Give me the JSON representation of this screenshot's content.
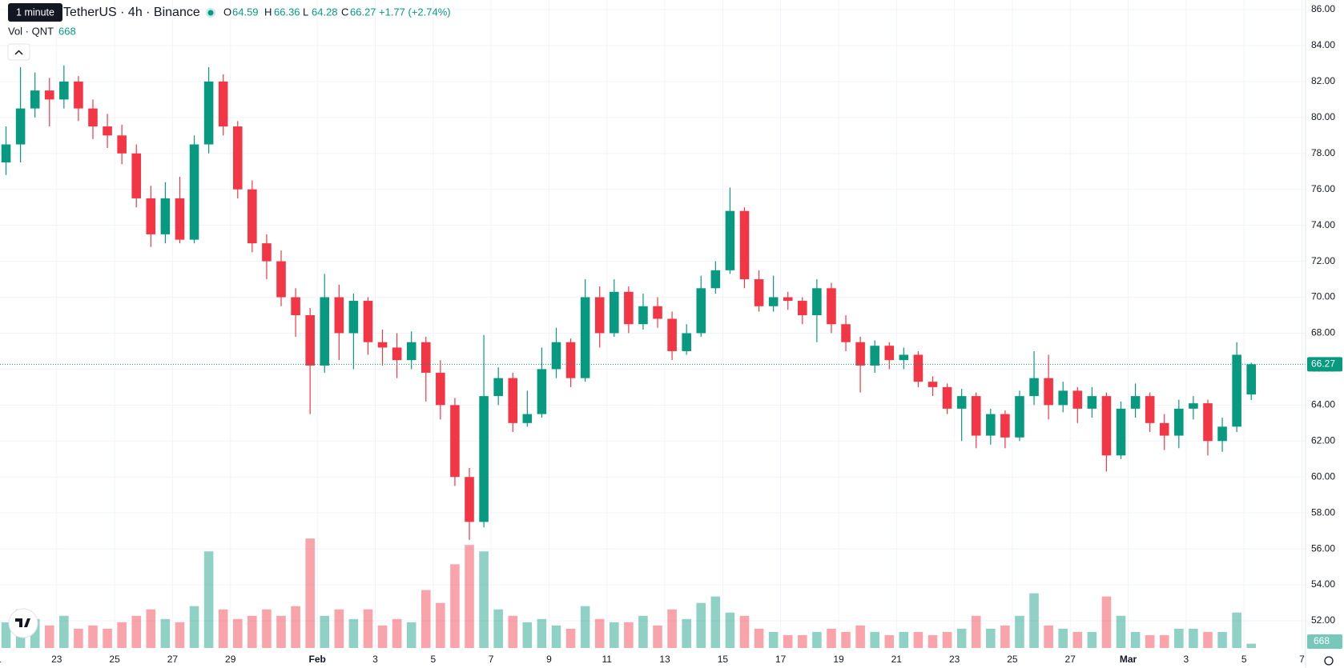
{
  "chart_data": {
    "type": "candlestick",
    "title": "TetherUS · 4h · Binance",
    "tooltip": "1 minute",
    "legend": {
      "labels": [
        "O",
        "H",
        "L",
        "C"
      ],
      "change": "+1.77 (+2.74%)"
    },
    "volume_title": "Vol · QNT",
    "up_color": "#089981",
    "down_color": "#f23645",
    "grid": true,
    "ylim": [
      52,
      86
    ],
    "yticks": [
      {
        "value": 86,
        "label": "86.00"
      },
      {
        "value": 84,
        "label": "84.00"
      },
      {
        "value": 82,
        "label": "82.00"
      },
      {
        "value": 80,
        "label": "80.00"
      },
      {
        "value": 78,
        "label": "78.00"
      },
      {
        "value": 76,
        "label": "76.00"
      },
      {
        "value": 74,
        "label": "74.00"
      },
      {
        "value": 72,
        "label": "72.00"
      },
      {
        "value": 70,
        "label": "70.00"
      },
      {
        "value": 68,
        "label": "68.00"
      },
      {
        "value": 66,
        "label": "66.00"
      },
      {
        "value": 64,
        "label": "64.00"
      },
      {
        "value": 62,
        "label": "62.00"
      },
      {
        "value": 60,
        "label": "60.00"
      },
      {
        "value": 58,
        "label": "58.00"
      },
      {
        "value": 56,
        "label": "56.00"
      },
      {
        "value": 54,
        "label": "54.00"
      },
      {
        "value": 52,
        "label": "52.00"
      }
    ],
    "xlim": [
      "01-21 01",
      "03-07 03"
    ],
    "xticks": [
      {
        "value": "01-21",
        "label": "1"
      },
      {
        "value": "01-23",
        "label": "23"
      },
      {
        "value": "01-25",
        "label": "25"
      },
      {
        "value": "01-27",
        "label": "27"
      },
      {
        "value": "01-29",
        "label": "29"
      },
      {
        "value": "02-01",
        "label": "Feb"
      },
      {
        "value": "02-03",
        "label": "3"
      },
      {
        "value": "02-05",
        "label": "5"
      },
      {
        "value": "02-07",
        "label": "7"
      },
      {
        "value": "02-09",
        "label": "9"
      },
      {
        "value": "02-11",
        "label": "11"
      },
      {
        "value": "02-13",
        "label": "13"
      },
      {
        "value": "02-15",
        "label": "15"
      },
      {
        "value": "02-17",
        "label": "17"
      },
      {
        "value": "02-19",
        "label": "19"
      },
      {
        "value": "02-21",
        "label": "21"
      },
      {
        "value": "02-23",
        "label": "23"
      },
      {
        "value": "02-25",
        "label": "25"
      },
      {
        "value": "02-27",
        "label": "27"
      },
      {
        "value": "03-01",
        "label": "Mar"
      },
      {
        "value": "03-03",
        "label": "3"
      },
      {
        "value": "03-05",
        "label": "5"
      },
      {
        "value": "03-07",
        "label": "7"
      }
    ],
    "candles": {
      "x": [
        "01-21 00",
        "01-21 12",
        "01-22 00",
        "01-22 12",
        "01-23 00",
        "01-23 12",
        "01-24 00",
        "01-24 12",
        "01-25 00",
        "01-25 12",
        "01-26 00",
        "01-26 12",
        "01-27 00",
        "01-27 12",
        "01-28 00",
        "01-28 12",
        "01-29 00",
        "01-29 12",
        "01-30 00",
        "01-30 12",
        "01-31 00",
        "01-31 12",
        "02-01 00",
        "02-01 12",
        "02-02 00",
        "02-02 12",
        "02-03 00",
        "02-03 12",
        "02-04 00",
        "02-04 12",
        "02-05 00",
        "02-05 12",
        "02-06 00",
        "02-06 12",
        "02-07 00",
        "02-07 12",
        "02-08 00",
        "02-08 12",
        "02-09 00",
        "02-09 12",
        "02-10 00",
        "02-10 12",
        "02-11 00",
        "02-11 12",
        "02-12 00",
        "02-12 12",
        "02-13 00",
        "02-13 12",
        "02-14 00",
        "02-14 12",
        "02-15 00",
        "02-15 12",
        "02-16 00",
        "02-16 12",
        "02-17 00",
        "02-17 12",
        "02-18 00",
        "02-18 12",
        "02-19 00",
        "02-19 12",
        "02-20 00",
        "02-20 12",
        "02-21 00",
        "02-21 12",
        "02-22 00",
        "02-22 12",
        "02-23 00",
        "02-23 12",
        "02-24 00",
        "02-24 12",
        "02-25 00",
        "02-25 12",
        "02-26 00",
        "02-26 12",
        "02-27 00",
        "02-27 12",
        "02-28 00",
        "02-28 12",
        "03-01 00",
        "03-01 12",
        "03-02 00",
        "03-02 12",
        "03-03 00",
        "03-03 12",
        "03-04 00",
        "03-04 12",
        "03-05 00"
      ],
      "open": [
        77.5,
        78.5,
        80.5,
        81.5,
        81,
        82,
        80.5,
        79.5,
        79,
        78,
        75.5,
        73.5,
        75.5,
        73.2,
        78.5,
        82,
        79.5,
        76,
        73,
        72,
        70,
        69,
        66.2,
        70,
        68,
        69.8,
        67.5,
        67.2,
        66.5,
        67.5,
        65.8,
        64,
        60,
        57.5,
        64.5,
        65.5,
        63,
        63.5,
        66,
        67.5,
        65.5,
        70,
        68,
        70.3,
        68.5,
        69.5,
        68.8,
        67,
        68,
        70.5,
        71.5,
        74.8,
        71,
        69.5,
        70,
        69.8,
        69,
        70.5,
        68.5,
        67.5,
        66.2,
        67.3,
        66.5,
        66.8,
        65.3,
        65,
        63.8,
        64.5,
        62.3,
        63.5,
        62.2,
        64.5,
        65.5,
        64,
        64.8,
        63.8,
        64.5,
        61.2,
        63.8,
        64.5,
        63,
        62.3,
        63.8,
        64.1,
        62,
        62.8,
        64.59
      ],
      "high": [
        79.5,
        82.8,
        82.5,
        82.2,
        82.9,
        82.3,
        81,
        80.2,
        79.6,
        78.5,
        76.2,
        76.4,
        76.7,
        79,
        82.8,
        82.4,
        79.8,
        76.5,
        73.5,
        72.6,
        70.5,
        69.4,
        71.3,
        70.7,
        70.2,
        70,
        68.2,
        68,
        68.1,
        67.8,
        66.5,
        64.4,
        60.5,
        67.9,
        66.1,
        65.8,
        64.8,
        67.2,
        68.3,
        67.7,
        71,
        70.6,
        71,
        70.6,
        70.2,
        70,
        69.2,
        68.5,
        71.2,
        72,
        76.1,
        75,
        71.5,
        71.2,
        70.3,
        70,
        71,
        70.8,
        69,
        67.8,
        67.6,
        67.5,
        67.2,
        67,
        65.6,
        65.2,
        64.9,
        64.7,
        63.8,
        63.7,
        64.8,
        67,
        66.8,
        65.3,
        65,
        65,
        64.7,
        64.2,
        65.2,
        64.7,
        63.5,
        64.3,
        64.5,
        64.3,
        63.3,
        67.5,
        66.36
      ],
      "low": [
        76.8,
        77.5,
        80,
        79.5,
        80.5,
        79.8,
        78.8,
        78.3,
        77.4,
        75,
        72.8,
        73,
        73,
        73,
        78,
        79,
        75.5,
        72.5,
        71,
        69.5,
        67.8,
        63.5,
        65.8,
        66.5,
        66,
        66.8,
        66.2,
        65.5,
        66,
        64.2,
        63.2,
        59.5,
        56.5,
        57.2,
        64,
        62.5,
        62.8,
        63.3,
        65.5,
        65,
        65.3,
        67.2,
        67.8,
        68,
        68.2,
        68.3,
        66.5,
        66.8,
        67.8,
        70.2,
        71.3,
        70.5,
        69.2,
        69.2,
        69.3,
        68.5,
        67.5,
        68,
        67,
        64.7,
        65.8,
        66,
        66,
        65,
        64.5,
        63.5,
        62,
        61.6,
        61.8,
        61.6,
        62,
        64,
        63.2,
        63.6,
        63,
        63.3,
        60.3,
        61,
        63.3,
        62.5,
        61.5,
        61.6,
        63.2,
        61.2,
        61.4,
        62.5,
        64.28
      ],
      "close": [
        78.5,
        80.5,
        81.5,
        81,
        82,
        80.5,
        79.5,
        79,
        78,
        75.5,
        73.5,
        75.5,
        73.2,
        78.5,
        82,
        79.5,
        76,
        73,
        72,
        70,
        69,
        66.2,
        70,
        68,
        69.8,
        67.5,
        67.2,
        66.5,
        67.5,
        65.8,
        64,
        60,
        57.5,
        64.5,
        65.5,
        63,
        63.5,
        66,
        67.5,
        65.5,
        70,
        68,
        70.3,
        68.5,
        69.5,
        68.8,
        67,
        68,
        70.5,
        71.5,
        74.8,
        71,
        69.5,
        70,
        69.8,
        69,
        70.5,
        68.5,
        67.5,
        66.2,
        67.3,
        66.5,
        66.8,
        65.3,
        65,
        63.8,
        64.5,
        62.3,
        63.5,
        62.2,
        64.5,
        65.5,
        64,
        64.8,
        63.8,
        64.5,
        61.2,
        63.8,
        64.5,
        63,
        62.3,
        63.8,
        64.1,
        62,
        62.8,
        66.8,
        66.27
      ]
    },
    "volume": {
      "ylim": [
        0,
        40000
      ],
      "values": [
        4000,
        6000,
        4500,
        3500,
        5000,
        3000,
        3500,
        3000,
        4000,
        5000,
        6000,
        4500,
        4000,
        6500,
        15000,
        6000,
        4500,
        5000,
        6000,
        5000,
        6500,
        17000,
        5000,
        6000,
        4500,
        6000,
        3500,
        4500,
        4000,
        9000,
        7000,
        13000,
        16000,
        15000,
        6000,
        5000,
        4000,
        4500,
        3500,
        3000,
        6500,
        4500,
        4000,
        4000,
        5000,
        3500,
        6000,
        4500,
        7000,
        8000,
        5500,
        5000,
        3000,
        2500,
        2000,
        2000,
        2500,
        3000,
        2500,
        3500,
        2500,
        2000,
        2500,
        2500,
        2000,
        2500,
        3000,
        5000,
        3000,
        3500,
        5000,
        8500,
        3500,
        3000,
        2500,
        2500,
        8000,
        5000,
        2500,
        2000,
        2000,
        3000,
        3000,
        2500,
        2500,
        5500,
        668
      ]
    }
  }
}
